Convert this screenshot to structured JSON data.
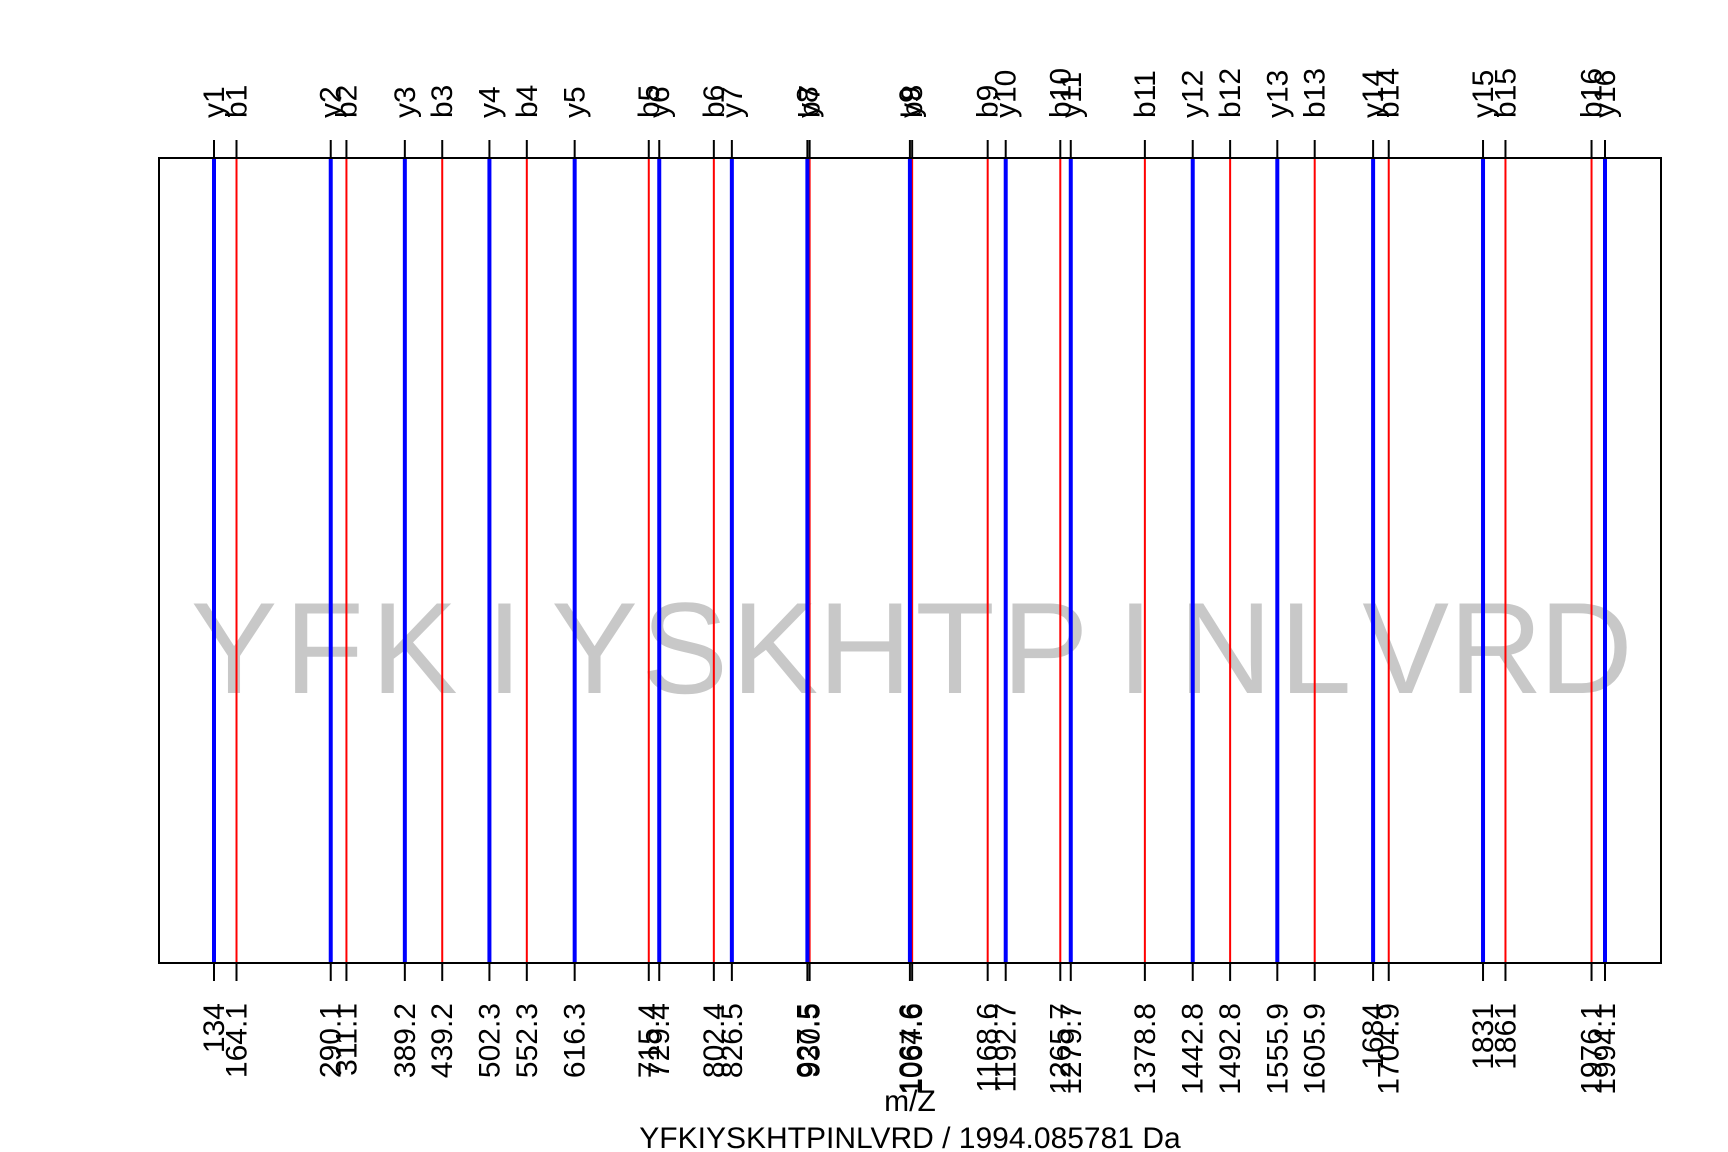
{
  "chart_data": {
    "type": "fragment-ion-spectrum",
    "xlabel": "m/Z",
    "subtitle": "YFKIYSKHTPINLVRD / 1994.085781 Da",
    "sequence_letters": [
      "Y",
      "F",
      "K",
      "I",
      "Y",
      "S",
      "K",
      "H",
      "T",
      "P",
      "I",
      "N",
      "L",
      "V",
      "R",
      "D"
    ],
    "xlim": [
      134,
      1994.1
    ],
    "colors": {
      "b": "#ff0000",
      "y": "#0000ff",
      "frame": "#000000",
      "watermark": "#c8c8c8"
    },
    "series": [
      {
        "name": "b",
        "ions": [
          {
            "label": "b1",
            "mz": 164.1,
            "tick": "164.1"
          },
          {
            "label": "b2",
            "mz": 311.1,
            "tick": "311.1"
          },
          {
            "label": "b3",
            "mz": 439.2,
            "tick": "439.2"
          },
          {
            "label": "b4",
            "mz": 552.3,
            "tick": "552.3"
          },
          {
            "label": "b5",
            "mz": 715.4,
            "tick": "715.4"
          },
          {
            "label": "b6",
            "mz": 802.4,
            "tick": "802.4"
          },
          {
            "label": "b7",
            "mz": 930.5,
            "tick": "930.5"
          },
          {
            "label": "b8",
            "mz": 1067.6,
            "tick": "1067.6"
          },
          {
            "label": "b9",
            "mz": 1168.6,
            "tick": "1168.6"
          },
          {
            "label": "b10",
            "mz": 1265.7,
            "tick": "1265.7"
          },
          {
            "label": "b11",
            "mz": 1378.8,
            "tick": "1378.8"
          },
          {
            "label": "b12",
            "mz": 1492.8,
            "tick": "1492.8"
          },
          {
            "label": "b13",
            "mz": 1605.9,
            "tick": "1605.9"
          },
          {
            "label": "b14",
            "mz": 1704.9,
            "tick": "1704.9"
          },
          {
            "label": "b15",
            "mz": 1861,
            "tick": "1861"
          },
          {
            "label": "b16",
            "mz": 1976.1,
            "tick": "1976.1"
          }
        ]
      },
      {
        "name": "y",
        "ions": [
          {
            "label": "y1",
            "mz": 134,
            "tick": "134"
          },
          {
            "label": "y2",
            "mz": 290.1,
            "tick": "290.1"
          },
          {
            "label": "y3",
            "mz": 389.2,
            "tick": "389.2"
          },
          {
            "label": "y4",
            "mz": 502.3,
            "tick": "502.3"
          },
          {
            "label": "y5",
            "mz": 616.3,
            "tick": "616.3"
          },
          {
            "label": "y6",
            "mz": 729.4,
            "tick": "729.4"
          },
          {
            "label": "y7",
            "mz": 826.5,
            "tick": "826.5"
          },
          {
            "label": "y8",
            "mz": 927.5,
            "tick": "927.5"
          },
          {
            "label": "y9",
            "mz": 1064.6,
            "tick": "1064.6"
          },
          {
            "label": "y10",
            "mz": 1192.7,
            "tick": "1192.7"
          },
          {
            "label": "y11",
            "mz": 1279.7,
            "tick": "1279.7"
          },
          {
            "label": "y12",
            "mz": 1442.8,
            "tick": "1442.8"
          },
          {
            "label": "y13",
            "mz": 1555.9,
            "tick": "1555.9"
          },
          {
            "label": "y14",
            "mz": 1684,
            "tick": "1684"
          },
          {
            "label": "y15",
            "mz": 1831,
            "tick": "1831"
          },
          {
            "label": "y16",
            "mz": 1994.1,
            "tick": "1994.1"
          }
        ]
      }
    ]
  }
}
